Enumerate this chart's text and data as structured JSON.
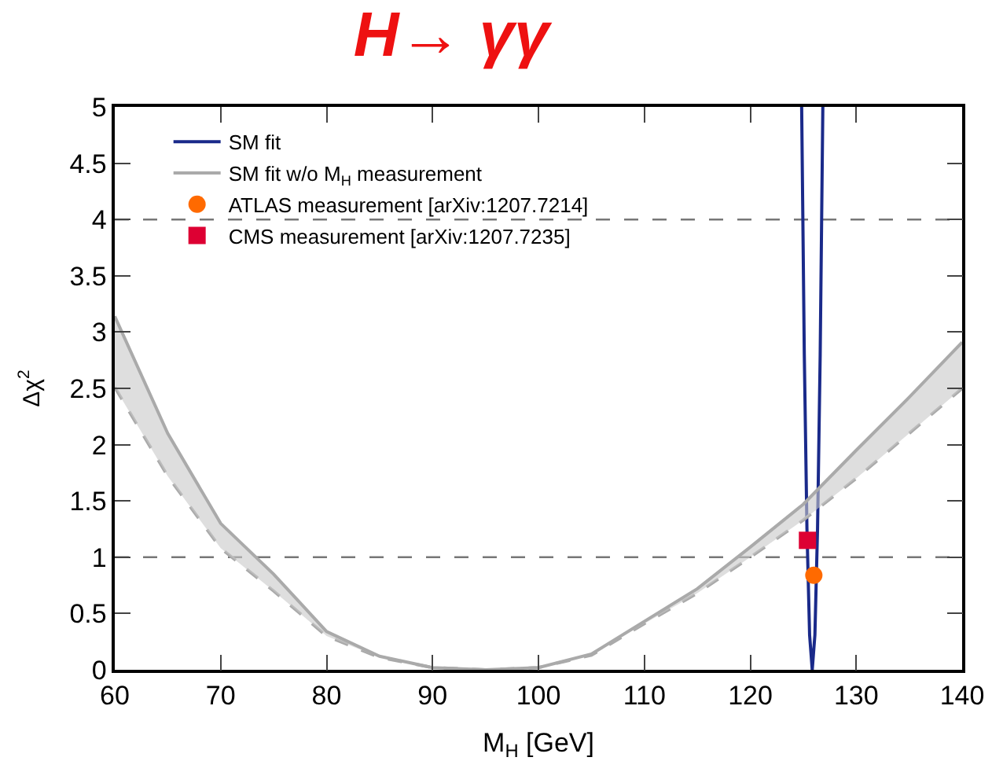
{
  "chart_data": {
    "type": "line",
    "title": "H→ γγ",
    "xlabel": "M$_{H}$ [GeV]",
    "ylabel": "Δχ$^{2}$",
    "xlim": [
      60,
      140
    ],
    "xticks": [
      60,
      70,
      80,
      90,
      100,
      110,
      120,
      130,
      140
    ],
    "ylim": [
      0,
      5
    ],
    "yticks": [
      0,
      0.5,
      1,
      1.5,
      2,
      2.5,
      3,
      3.5,
      4,
      4.5,
      5
    ],
    "grid": false,
    "legend": "top left",
    "ref_lines": [
      {
        "axis": "y",
        "value": 1,
        "color": "#777777",
        "line_style": "dashed"
      },
      {
        "axis": "y",
        "value": 4,
        "color": "#777777",
        "line_style": "dashed"
      }
    ],
    "series": [
      {
        "name": "SM fit",
        "color": "#1a2a8a",
        "x": [
          124.85,
          125.1,
          125.35,
          125.6,
          125.85,
          126.1,
          126.35,
          126.6,
          126.85
        ],
        "values": [
          5,
          2.8,
          1.25,
          0.31,
          0,
          0.31,
          1.25,
          2.8,
          5
        ]
      },
      {
        "color": "#aaaaaa",
        "line_style": "dashed",
        "x": [
          60,
          65,
          70,
          75,
          80,
          85,
          90,
          95,
          100,
          105,
          110,
          115,
          120,
          125,
          130,
          135,
          140
        ],
        "values": [
          2.51,
          1.72,
          1.08,
          0.7,
          0.3,
          0.11,
          0.02,
          0,
          0.02,
          0.13,
          0.41,
          0.68,
          1.0,
          1.33,
          1.7,
          2.1,
          2.5
        ]
      },
      {
        "name": "SM fit w/o M$_{H}$ measurement",
        "color": "#aaaaaa",
        "x": [
          60,
          65,
          70,
          75,
          80,
          85,
          90,
          95,
          100,
          105,
          110,
          115,
          120,
          125,
          130,
          135,
          140
        ],
        "values": [
          3.14,
          2.1,
          1.3,
          0.85,
          0.34,
          0.12,
          0.02,
          0,
          0.02,
          0.14,
          0.43,
          0.72,
          1.09,
          1.47,
          1.95,
          2.42,
          2.91
        ],
        "upper": [
          3.14,
          2.1,
          1.3,
          0.85,
          0.34,
          0.12,
          0.02,
          0,
          0.02,
          0.14,
          0.43,
          0.72,
          1.09,
          1.47,
          1.95,
          2.42,
          2.91
        ],
        "lower": [
          2.51,
          1.72,
          1.08,
          0.7,
          0.3,
          0.11,
          0.02,
          0,
          0.02,
          0.13,
          0.41,
          0.68,
          1.0,
          1.33,
          1.7,
          2.1,
          2.5
        ]
      },
      {
        "name": "ATLAS measurement [arXiv:1207.7214]",
        "type": "scatter",
        "marker": "circle",
        "color": "#ff6a00",
        "x": [
          126.0
        ],
        "values": [
          0.84
        ]
      },
      {
        "name": "CMS measurement [arXiv:1207.7235]",
        "type": "scatter",
        "marker": "square",
        "color": "#dd0033",
        "x": [
          125.4
        ],
        "values": [
          1.15
        ]
      }
    ]
  }
}
